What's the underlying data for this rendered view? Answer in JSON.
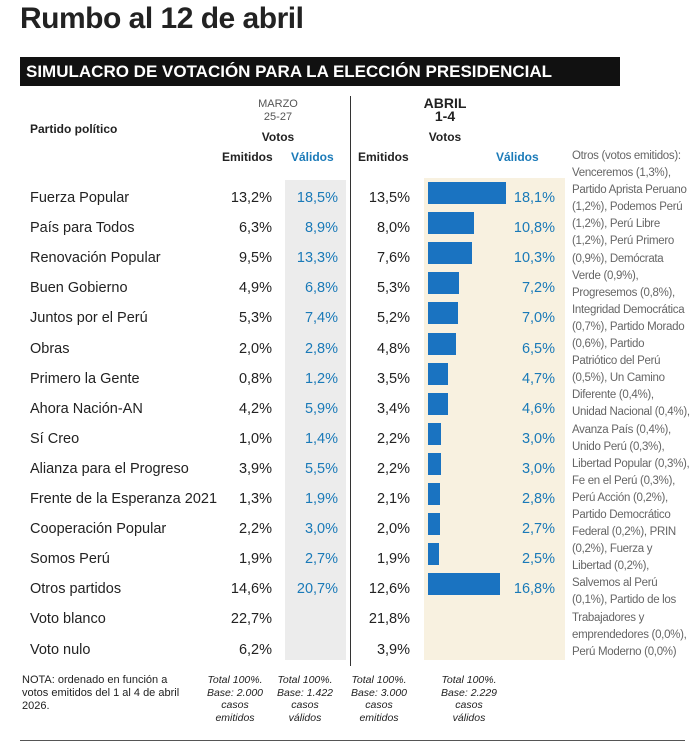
{
  "title": "Rumbo al 12 de abril",
  "banner": "SIMULACRO DE VOTACIÓN PARA LA ELECCIÓN PRESIDENCIAL",
  "header": {
    "party": "Partido político",
    "marzo": "MARZO",
    "marzo_dates": "25-27",
    "abril": "ABRIL",
    "abril_dates": "1-4",
    "votos": "Votos",
    "emitidos": "Emitidos",
    "validos": "Válidos"
  },
  "table": {
    "rows": [
      [
        "Fuerza Popular",
        "13,2%",
        "18,5%",
        "13,5%",
        "18,1%"
      ],
      [
        "País para Todos",
        "6,3%",
        "8,9%",
        "8,0%",
        "10,8%"
      ],
      [
        "Renovación Popular",
        "9,5%",
        "13,3%",
        "7,6%",
        "10,3%"
      ],
      [
        "Buen Gobierno",
        "4,9%",
        "6,8%",
        "5,3%",
        "7,2%"
      ],
      [
        "Juntos por el Perú",
        "5,3%",
        "7,4%",
        "5,2%",
        "7,0%"
      ],
      [
        "Obras",
        "2,0%",
        "2,8%",
        "4,8%",
        "6,5%"
      ],
      [
        "Primero la Gente",
        "0,8%",
        "1,2%",
        "3,5%",
        "4,7%"
      ],
      [
        "Ahora Nación-AN",
        "4,2%",
        "5,9%",
        "3,4%",
        "4,6%"
      ],
      [
        "Sí Creo",
        "1,0%",
        "1,4%",
        "2,2%",
        "3,0%"
      ],
      [
        "Alianza para el Progreso",
        "3,9%",
        "5,5%",
        "2,2%",
        "3,0%"
      ],
      [
        "Frente de la Esperanza 2021",
        "1,3%",
        "1,9%",
        "2,1%",
        "2,8%"
      ],
      [
        "Cooperación Popular",
        "2,2%",
        "3,0%",
        "2,0%",
        "2,7%"
      ],
      [
        "Somos Perú",
        "1,9%",
        "2,7%",
        "1,9%",
        "2,5%"
      ],
      [
        "Otros partidos",
        "14,6%",
        "20,7%",
        "12,6%",
        "16,8%"
      ],
      [
        "Voto blanco",
        "22,7%",
        null,
        "21,8%",
        null
      ],
      [
        "Voto nulo",
        "6,2%",
        null,
        "3,9%",
        null
      ]
    ]
  },
  "others": "Otros (votos emitidos): Venceremos (1,3%), Partido Aprista Peruano (1,2%), Podemos Perú (1,2%), Perú Libre (1,2%), Perú Primero (0,9%), Demócrata Verde (0,9%), Progresemos (0,8%), Integridad Democrática (0,7%), Partido Morado (0,6%), Partido Patriótico del Perú (0,5%), Un Camino Diferente (0,4%), Unidad Nacional (0,4%), Avanza País (0,4%), Unido Perú (0,3%), Libertad Popular (0,3%), Fe en el Perú (0,3%), Perú Acción (0,2%), Partido Democrático Federal (0,2%), PRIN (0,2%), Fuerza y Libertad (0,2%), Salvemos al Perú (0,1%), Partido de los Trabajadores y emprendedores (0,0%), Perú Moderno (0,0%)",
  "note": "NOTA: ordenado en función a votos emitidos del 1 al 4 de abril 2026.",
  "totals": [
    [
      "Total 100%.",
      "Base: 2.000",
      "casos",
      "emitidos"
    ],
    [
      "Total 100%.",
      "Base: 1.422",
      "casos",
      "válidos"
    ],
    [
      "Total 100%.",
      "Base: 3.000",
      "casos",
      "emitidos"
    ],
    [
      "Total 100%.",
      "Base: 2.229",
      "casos",
      "válidos"
    ]
  ]
}
